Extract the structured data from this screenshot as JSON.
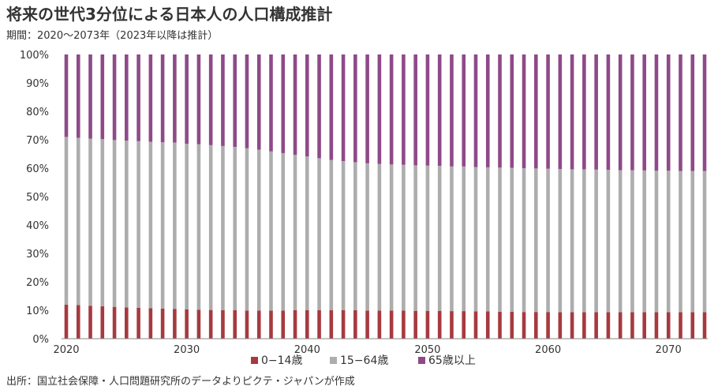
{
  "title": "将来の世代3分位による日本人の人口構成推計",
  "subtitle": "期間：2020〜2073年（2023年以降は推計）",
  "source": "出所：国立社会保障・人口問題研究所のデータよりピクテ・ジャパンが作成",
  "chart_data": {
    "type": "bar",
    "stacked": true,
    "x": [
      2020,
      2021,
      2022,
      2023,
      2024,
      2025,
      2026,
      2027,
      2028,
      2029,
      2030,
      2031,
      2032,
      2033,
      2034,
      2035,
      2036,
      2037,
      2038,
      2039,
      2040,
      2041,
      2042,
      2043,
      2044,
      2045,
      2046,
      2047,
      2048,
      2049,
      2050,
      2051,
      2052,
      2053,
      2054,
      2055,
      2056,
      2057,
      2058,
      2059,
      2060,
      2061,
      2062,
      2063,
      2064,
      2065,
      2066,
      2067,
      2068,
      2069,
      2070,
      2071,
      2072,
      2073
    ],
    "xticks": [
      "2020",
      "2030",
      "2040",
      "2050",
      "2060",
      "2070"
    ],
    "yticks": [
      "0%",
      "10%",
      "20%",
      "30%",
      "40%",
      "50%",
      "60%",
      "70%",
      "80%",
      "90%",
      "100%"
    ],
    "ylim": [
      0,
      100
    ],
    "legend_position": "bottom",
    "series": [
      {
        "name": "0−14歳",
        "color": "#a63a3f",
        "values": [
          12.0,
          11.8,
          11.6,
          11.4,
          11.2,
          11.0,
          10.9,
          10.7,
          10.6,
          10.5,
          10.3,
          10.2,
          10.1,
          10.0,
          10.0,
          9.9,
          9.9,
          9.9,
          9.9,
          10.0,
          10.0,
          10.0,
          10.0,
          10.0,
          10.0,
          9.9,
          9.9,
          9.9,
          9.9,
          9.8,
          9.8,
          9.8,
          9.7,
          9.7,
          9.6,
          9.6,
          9.5,
          9.5,
          9.4,
          9.4,
          9.4,
          9.3,
          9.3,
          9.3,
          9.3,
          9.3,
          9.3,
          9.3,
          9.3,
          9.3,
          9.3,
          9.3,
          9.3,
          9.3
        ]
      },
      {
        "name": "15−64歳",
        "color": "#adadad",
        "values": [
          59.0,
          58.9,
          58.8,
          58.8,
          58.7,
          58.7,
          58.6,
          58.6,
          58.5,
          58.5,
          58.3,
          58.2,
          58.0,
          57.8,
          57.5,
          57.1,
          56.6,
          56.0,
          55.4,
          54.7,
          54.1,
          53.5,
          52.9,
          52.5,
          52.1,
          51.8,
          51.6,
          51.4,
          51.3,
          51.2,
          51.1,
          51.0,
          50.9,
          50.9,
          50.8,
          50.7,
          50.7,
          50.6,
          50.6,
          50.5,
          50.4,
          50.4,
          50.3,
          50.3,
          50.2,
          50.1,
          50.0,
          50.0,
          49.9,
          49.8,
          49.8,
          49.7,
          49.7,
          49.7
        ]
      },
      {
        "name": "65歳以上",
        "color": "#8e4a88",
        "values": [
          29.0,
          29.3,
          29.6,
          29.8,
          30.1,
          30.3,
          30.5,
          30.7,
          30.9,
          31.0,
          31.4,
          31.6,
          31.9,
          32.2,
          32.5,
          33.0,
          33.5,
          34.1,
          34.7,
          35.3,
          35.9,
          36.5,
          37.1,
          37.5,
          37.9,
          38.3,
          38.5,
          38.7,
          38.8,
          39.0,
          39.1,
          39.2,
          39.4,
          39.4,
          39.6,
          39.7,
          39.8,
          39.9,
          40.0,
          40.1,
          40.2,
          40.3,
          40.4,
          40.4,
          40.5,
          40.6,
          40.7,
          40.7,
          40.8,
          40.9,
          40.9,
          41.0,
          41.0,
          41.0
        ]
      }
    ]
  }
}
